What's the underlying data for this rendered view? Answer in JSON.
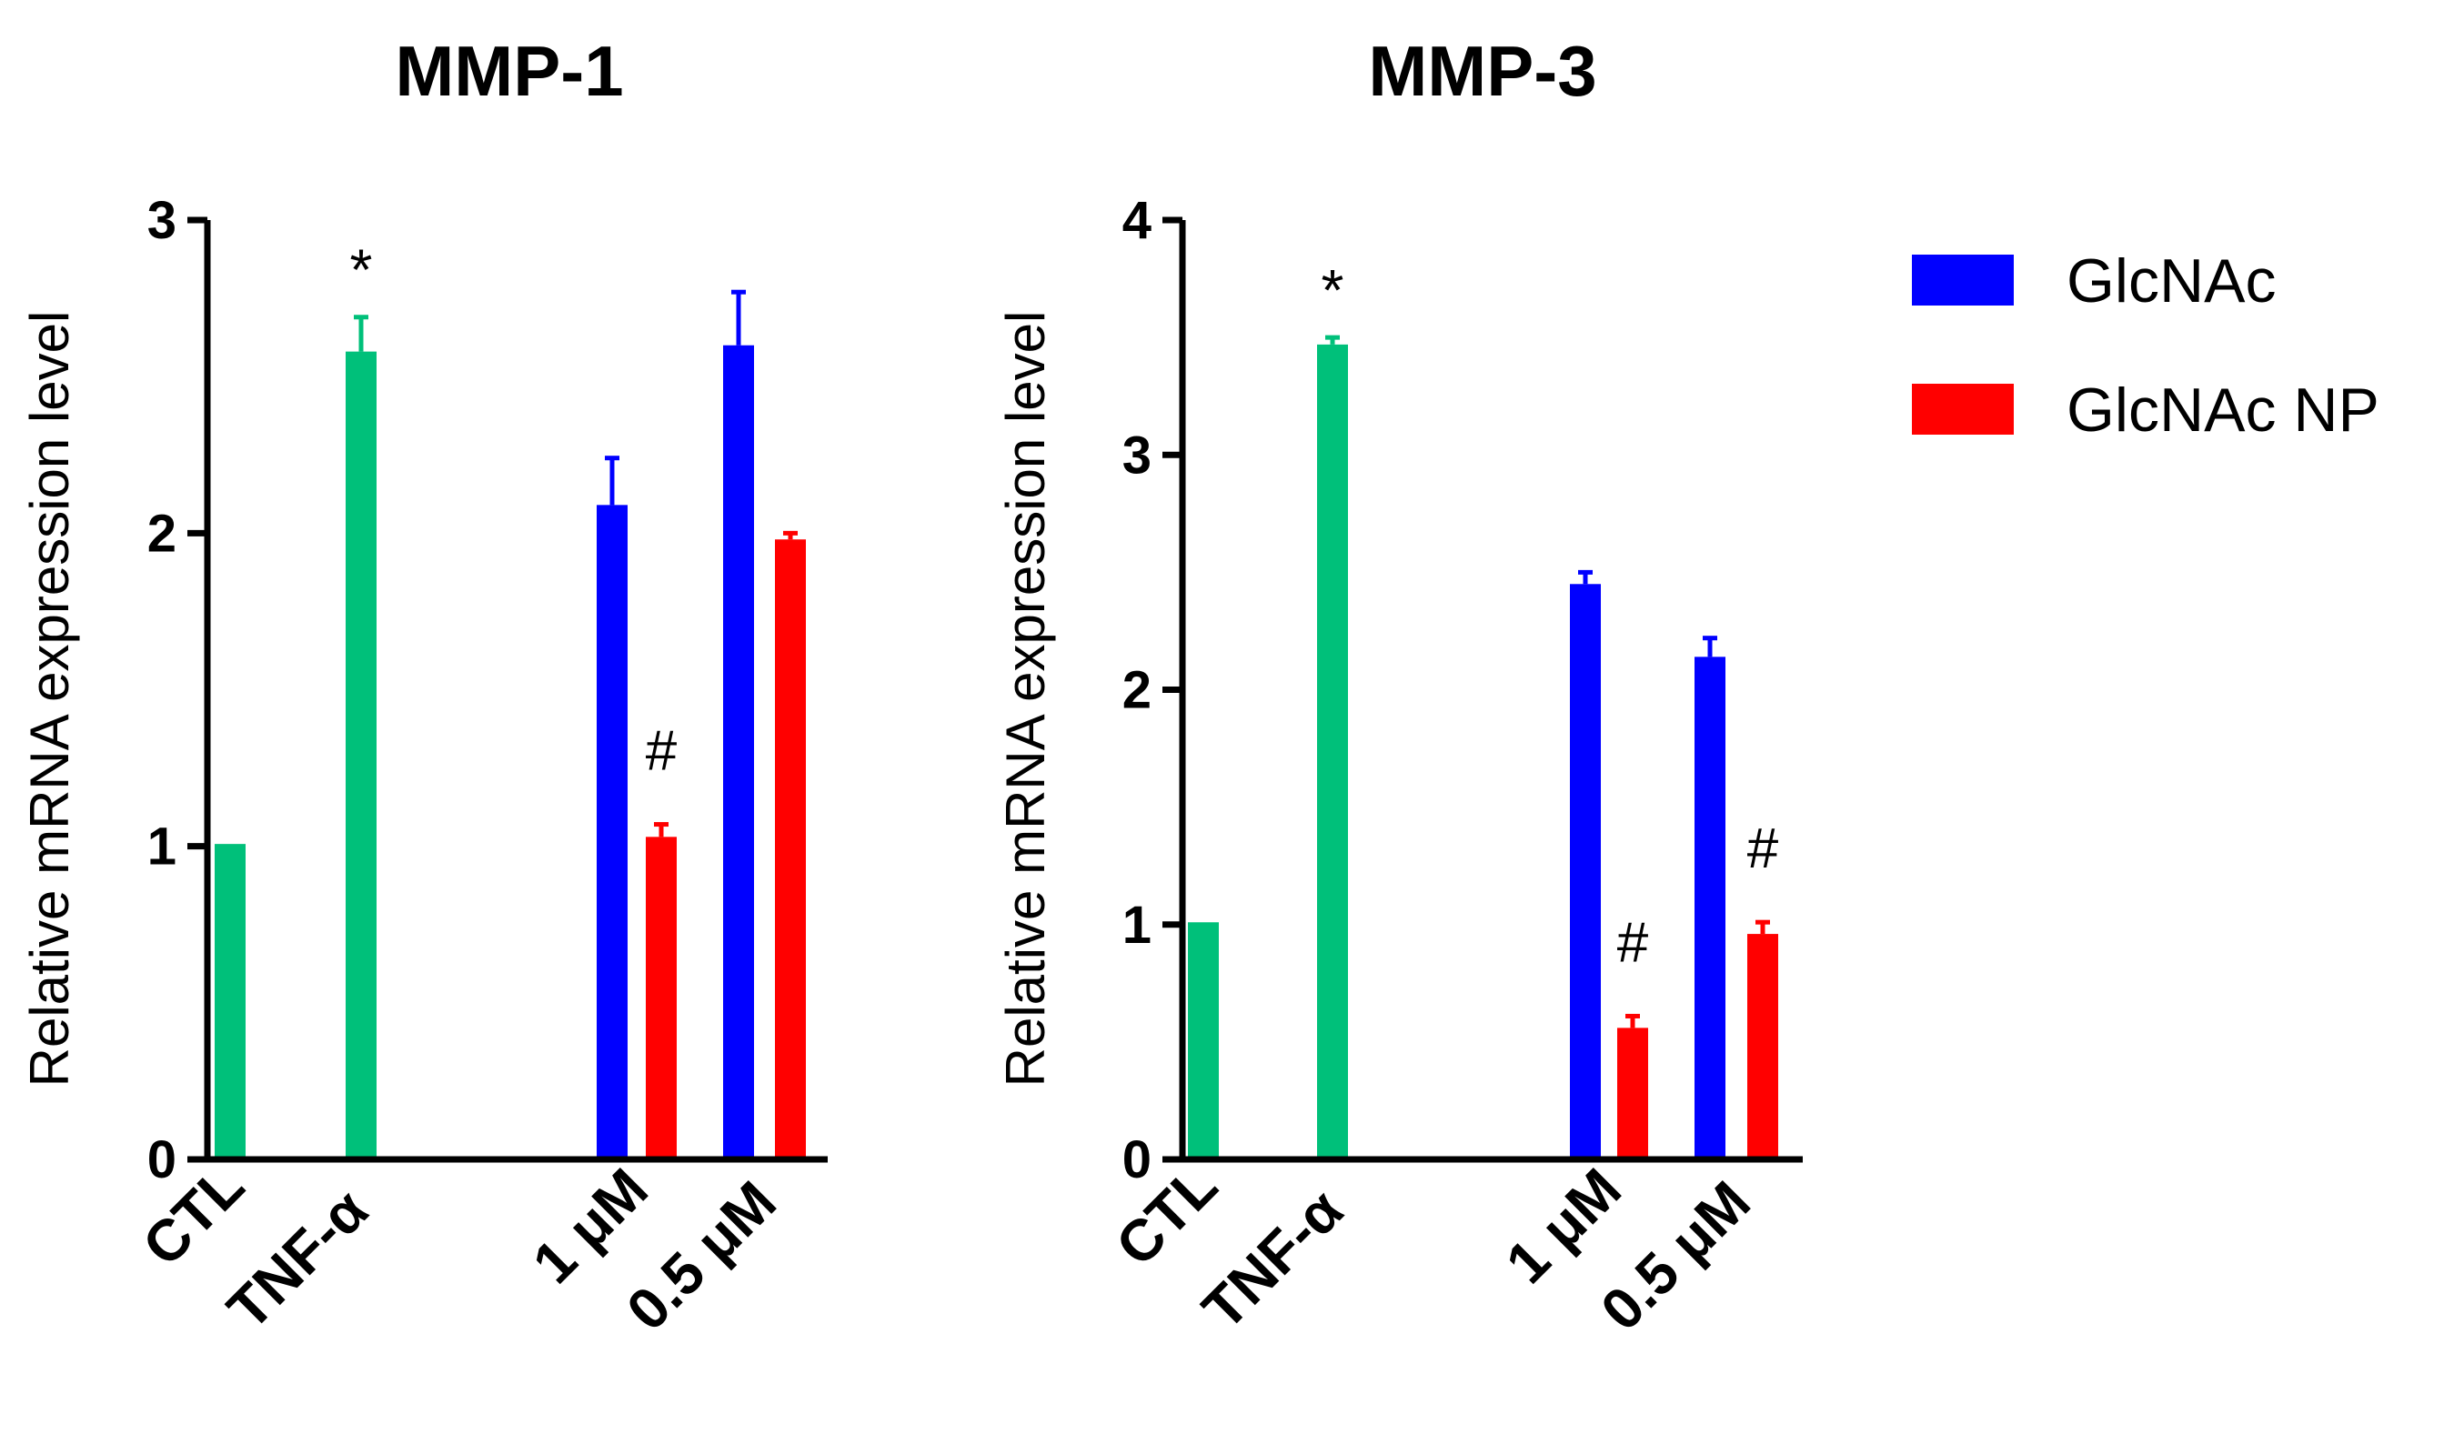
{
  "chart_data": [
    {
      "type": "bar",
      "title": "MMP-1",
      "ylabel": "Relative mRNA expression level",
      "xlabel": "",
      "ylim": [
        0,
        3
      ],
      "yticks": [
        "0",
        "1",
        "2",
        "3"
      ],
      "xtick_labels": [
        "CTL",
        "TNF-α",
        "1 μM",
        "0.5 μM"
      ],
      "bars": [
        {
          "group": "CTL",
          "series": "Control",
          "value": 1.0,
          "error": 0.0
        },
        {
          "group": "TNF-α",
          "series": "TNF-α",
          "value": 2.58,
          "error": 0.11
        },
        {
          "group": "1 μM",
          "series": "GlcNAc",
          "value": 2.09,
          "error": 0.15
        },
        {
          "group": "1 μM",
          "series": "GlcNAc NP",
          "value": 1.03,
          "error": 0.04
        },
        {
          "group": "0.5 μM",
          "series": "GlcNAc",
          "value": 2.6,
          "error": 0.17
        },
        {
          "group": "0.5 μM",
          "series": "GlcNAc NP",
          "value": 1.98,
          "error": 0.02
        }
      ],
      "annotations": [
        {
          "text": "*",
          "group": "TNF-α",
          "series": "TNF-α"
        },
        {
          "text": "#",
          "group": "1 μM",
          "series": "GlcNAc NP"
        }
      ]
    },
    {
      "type": "bar",
      "title": "MMP-3",
      "ylabel": "Relative mRNA expression level",
      "xlabel": "",
      "ylim": [
        0,
        4
      ],
      "yticks": [
        "0",
        "1",
        "2",
        "3",
        "4"
      ],
      "xtick_labels": [
        "CTL",
        "TNF-α",
        "1 μM",
        "0.5 μM"
      ],
      "bars": [
        {
          "group": "CTL",
          "series": "Control",
          "value": 1.0,
          "error": 0.0
        },
        {
          "group": "TNF-α",
          "series": "TNF-α",
          "value": 3.47,
          "error": 0.03
        },
        {
          "group": "1 μM",
          "series": "GlcNAc",
          "value": 2.45,
          "error": 0.05
        },
        {
          "group": "1 μM",
          "series": "GlcNAc NP",
          "value": 0.56,
          "error": 0.05
        },
        {
          "group": "0.5 μM",
          "series": "GlcNAc",
          "value": 2.14,
          "error": 0.08
        },
        {
          "group": "0.5 μM",
          "series": "GlcNAc NP",
          "value": 0.96,
          "error": 0.05
        }
      ],
      "annotations": [
        {
          "text": "*",
          "group": "TNF-α",
          "series": "TNF-α"
        },
        {
          "text": "#",
          "group": "1 μM",
          "series": "GlcNAc NP"
        },
        {
          "text": "#",
          "group": "0.5 μM",
          "series": "GlcNAc NP"
        }
      ]
    }
  ],
  "legend": [
    {
      "label": "GlcNAc",
      "color": "#0000ff"
    },
    {
      "label": "GlcNAc NP",
      "color": "#ff0000"
    }
  ],
  "colors": {
    "control": "#00c07a",
    "GlcNAc": "#0000ff",
    "GlcNAc NP": "#ff0000",
    "axis": "#000000"
  }
}
